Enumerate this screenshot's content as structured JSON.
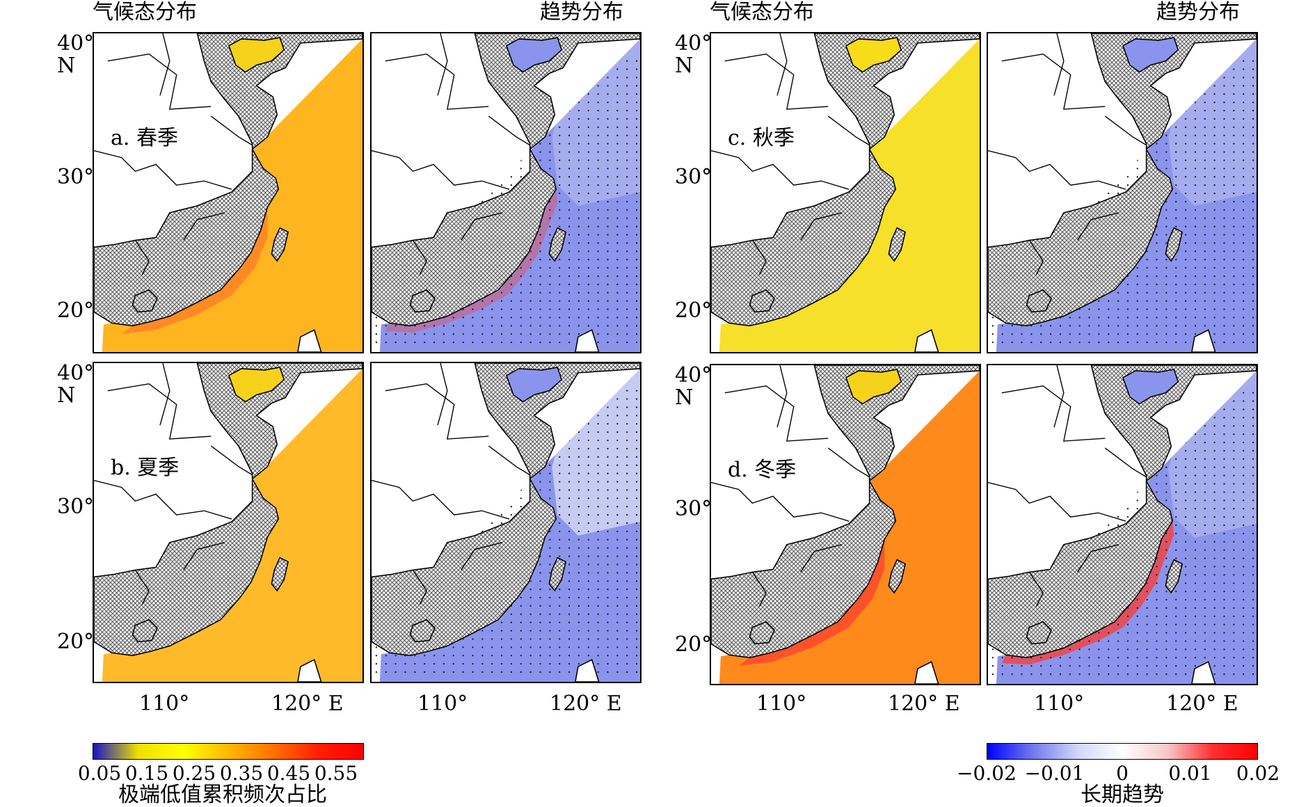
{
  "headers": {
    "left_climatology": "气候态分布",
    "left_trend": "趋势分布",
    "right_climatology": "气候态分布",
    "right_trend": "趋势分布"
  },
  "panels": {
    "a": "a. 春季",
    "b": "b. 夏季",
    "c": "c. 秋季",
    "d": "d. 冬季"
  },
  "axes": {
    "lat40": "40°",
    "lat30": "30°",
    "lat20": "20°",
    "north": "N",
    "lon110": "110°",
    "lon120": "120° E"
  },
  "colorbar_left": {
    "ticks": [
      "0.05",
      "0.15",
      "0.25",
      "0.35",
      "0.45",
      "0.55"
    ],
    "label": "极端低值累积频次占比",
    "colors": [
      "#1414c8",
      "#f0e000",
      "#ffff00",
      "#ffb800",
      "#ff7000",
      "#ff2000",
      "#ff0000"
    ]
  },
  "colorbar_right": {
    "ticks": [
      "−0.02",
      "−0.01",
      "0",
      "0.01",
      "0.02"
    ],
    "label": "长期趋势",
    "colors": [
      "#0000ff",
      "#6f78ee",
      "#d0d6f8",
      "#ffffff",
      "#f6c8c8",
      "#ff3030",
      "#ff0000"
    ]
  },
  "fills": {
    "spring_clim": "#ffb520",
    "summer_clim": "#ffba2a",
    "autumn_clim": "#f6e02a",
    "winter_clim": "#ff8a1c",
    "trend_neg": "#8b94ec",
    "trend_pale": "#c8cdf2",
    "coast_red": "#ff3a30",
    "land_hatch": "#555555"
  }
}
